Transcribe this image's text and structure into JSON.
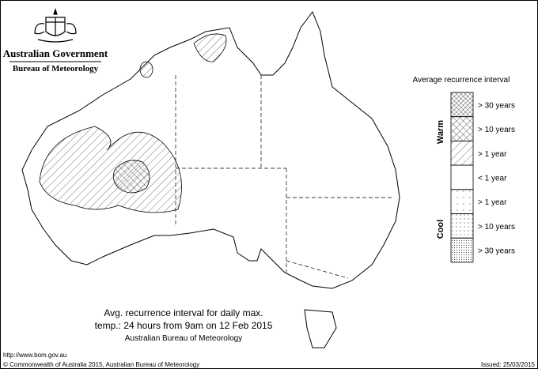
{
  "header": {
    "government": "Australian Government",
    "agency": "Bureau of Meteorology"
  },
  "legend": {
    "title": "Average recurrence interval",
    "groups": [
      {
        "label": "Warm"
      },
      {
        "label": "Cool"
      }
    ],
    "items": [
      "> 30 years",
      "> 10 years",
      "> 1 year",
      "< 1 year",
      "> 1 year",
      "> 10 years",
      "> 30 years"
    ]
  },
  "caption": {
    "lines": [
      "Avg. recurrence interval for daily max.",
      "temp.: 24 hours from 9am on 12 Feb 2015",
      "Australian Bureau of Meteorology"
    ]
  },
  "footer": {
    "url": "http://www.bom.gov.au",
    "copyright": "© Commonwealth of Australia 2015, Australian Bureau of Meteorology",
    "issued": "Issued: 25/03/2015"
  }
}
